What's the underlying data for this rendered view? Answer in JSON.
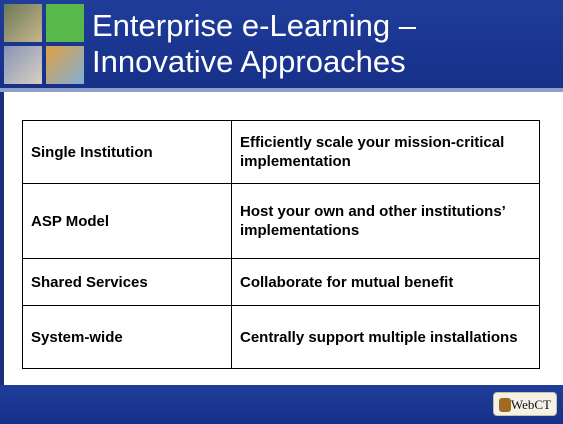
{
  "header": {
    "title_lines": [
      "Enterprise e-Learning –",
      "Innovative Approaches"
    ]
  },
  "table": {
    "rows": [
      [
        "Single Institution",
        "Efficiently scale your mission-critical implementation"
      ],
      [
        "ASP Model",
        "Host your own and other institutions’ implementations"
      ],
      [
        "Shared Services",
        "Collaborate for mutual benefit"
      ],
      [
        "System-wide",
        "Centrally support multiple installations"
      ]
    ]
  },
  "footer": {
    "logo": "WebCT"
  }
}
